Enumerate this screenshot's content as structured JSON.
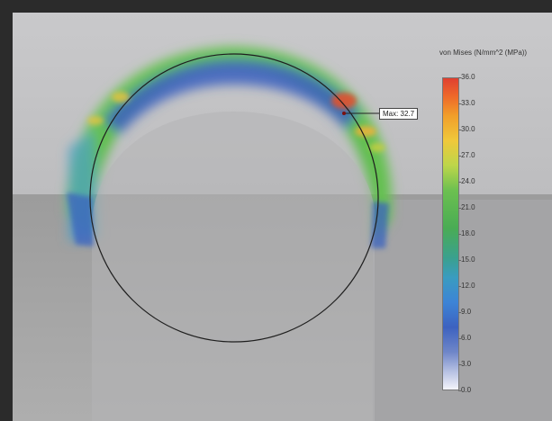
{
  "legend": {
    "title": "von Mises (N/mm^2 (MPa))",
    "ticks": [
      "36.0",
      "33.0",
      "30.0",
      "27.0",
      "24.0",
      "21.0",
      "18.0",
      "15.0",
      "12.0",
      "9.0",
      "6.0",
      "3.0",
      "0.0"
    ],
    "min": 0,
    "max": 36
  },
  "probe": {
    "label": "Max: 32.7",
    "value": 32.7
  },
  "colors": {
    "background_upper": "#c6c6c8",
    "background_lower": "#9a9a9a",
    "frame": "#2b2b2b",
    "outline": "#222222"
  }
}
